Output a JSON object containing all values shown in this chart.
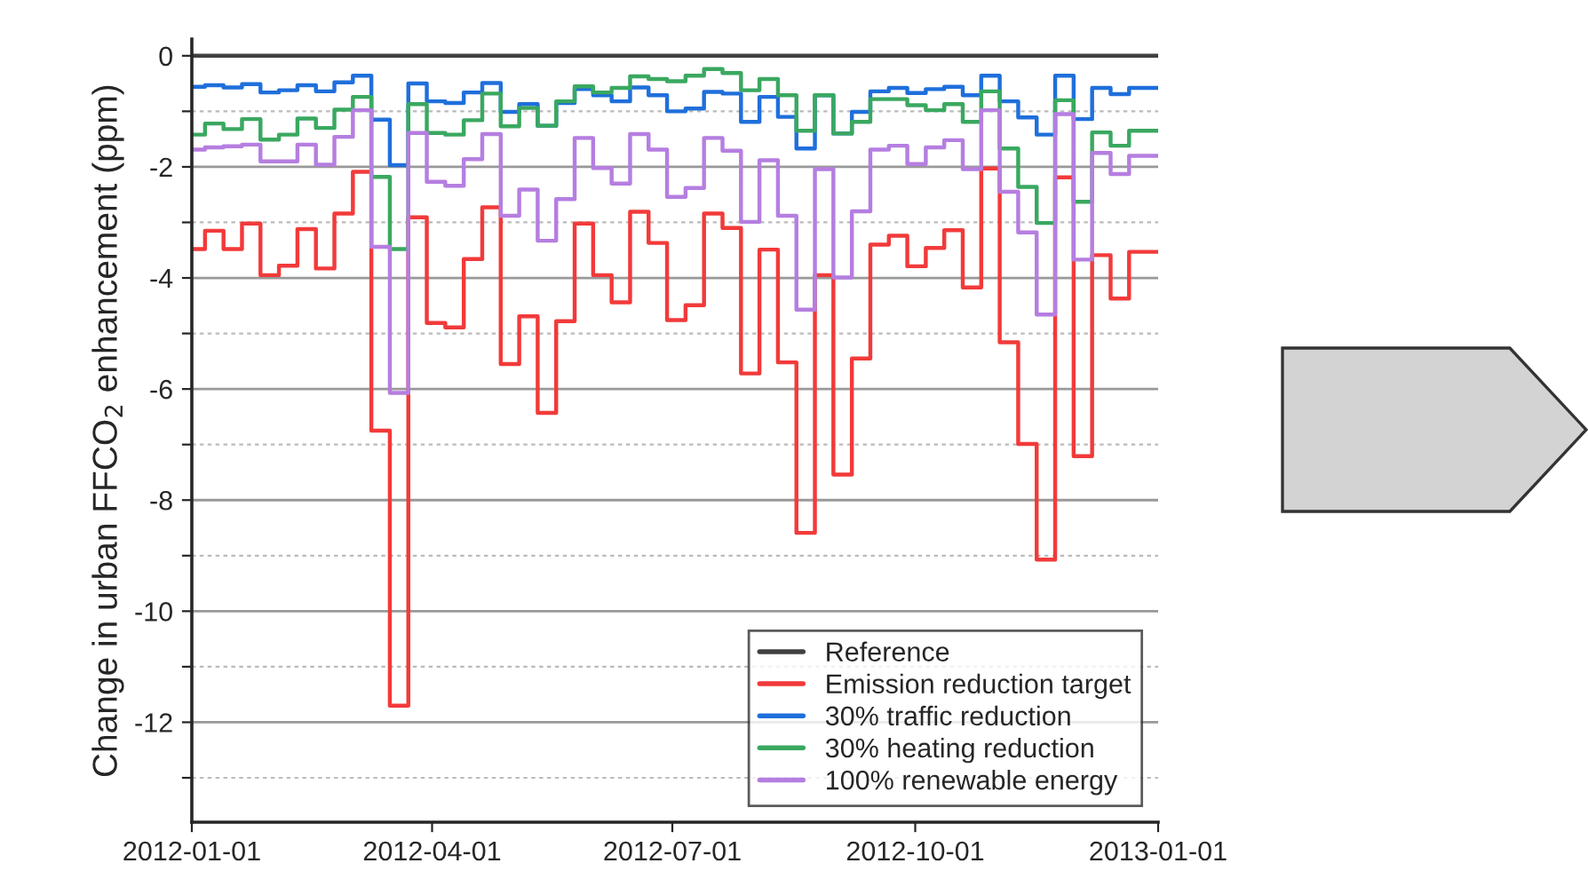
{
  "chart_data": {
    "type": "step",
    "ylabel": "Change in urban FFCO$_{2}$ enhancement (ppm)",
    "x": [
      "2012-01-01",
      "2012-01-06",
      "2012-01-13",
      "2012-01-20",
      "2012-01-27",
      "2012-02-03",
      "2012-02-10",
      "2012-02-17",
      "2012-02-24",
      "2012-03-02",
      "2012-03-09",
      "2012-03-16",
      "2012-03-23",
      "2012-03-30",
      "2012-04-06",
      "2012-04-13",
      "2012-04-20",
      "2012-04-27",
      "2012-05-04",
      "2012-05-11",
      "2012-05-18",
      "2012-05-25",
      "2012-06-01",
      "2012-06-08",
      "2012-06-15",
      "2012-06-22",
      "2012-06-29",
      "2012-07-06",
      "2012-07-13",
      "2012-07-20",
      "2012-07-27",
      "2012-08-03",
      "2012-08-10",
      "2012-08-17",
      "2012-08-24",
      "2012-08-31",
      "2012-09-07",
      "2012-09-14",
      "2012-09-21",
      "2012-09-28",
      "2012-10-05",
      "2012-10-12",
      "2012-10-19",
      "2012-10-26",
      "2012-11-02",
      "2012-11-09",
      "2012-11-16",
      "2012-11-23",
      "2012-11-30",
      "2012-12-07",
      "2012-12-14",
      "2012-12-21",
      "2013-01-01"
    ],
    "series": [
      {
        "name": "Reference",
        "color": "#404040",
        "x": [
          "2012-01-01",
          "2013-01-01"
        ],
        "values": [
          0,
          0
        ]
      },
      {
        "name": "Emission reduction target",
        "color": "#f23a3a",
        "values": [
          -3.48,
          -3.15,
          -3.48,
          -3.02,
          -3.95,
          -3.78,
          -3.12,
          -3.83,
          -2.84,
          -2.09,
          -6.75,
          -11.7,
          -2.91,
          -4.81,
          -4.89,
          -3.66,
          -2.73,
          -5.55,
          -4.69,
          -6.43,
          -4.78,
          -3.02,
          -3.95,
          -4.44,
          -2.81,
          -3.37,
          -4.76,
          -4.49,
          -2.84,
          -3.1,
          -5.72,
          -3.49,
          -5.52,
          -8.59,
          -3.95,
          -7.54,
          -5.45,
          -3.4,
          -3.24,
          -3.79,
          -3.46,
          -3.14,
          -4.17,
          -2.03,
          -5.16,
          -6.99,
          -9.07,
          -2.19,
          -7.21,
          -3.59,
          -4.37,
          -3.53,
          -3.53
        ]
      },
      {
        "name": "30% traffic reduction",
        "color": "#1f6fdb",
        "values": [
          -0.56,
          -0.53,
          -0.57,
          -0.51,
          -0.66,
          -0.62,
          -0.53,
          -0.64,
          -0.48,
          -0.36,
          -1.15,
          -1.97,
          -0.5,
          -0.82,
          -0.85,
          -0.66,
          -0.49,
          -1.01,
          -0.87,
          -1.26,
          -0.85,
          -0.6,
          -0.71,
          -0.82,
          -0.57,
          -0.71,
          -1.0,
          -0.95,
          -0.65,
          -0.68,
          -1.19,
          -0.74,
          -1.1,
          -1.67,
          -0.71,
          -1.4,
          -1.01,
          -0.64,
          -0.58,
          -0.67,
          -0.6,
          -0.56,
          -0.71,
          -0.36,
          -0.82,
          -1.11,
          -1.42,
          -0.36,
          -1.14,
          -0.58,
          -0.69,
          -0.58,
          -0.58
        ]
      },
      {
        "name": "30% heating reduction",
        "color": "#3aa860",
        "values": [
          -1.42,
          -1.22,
          -1.32,
          -1.14,
          -1.51,
          -1.42,
          -1.13,
          -1.3,
          -0.97,
          -0.74,
          -2.18,
          -3.48,
          -0.87,
          -1.39,
          -1.42,
          -1.16,
          -0.68,
          -1.27,
          -0.94,
          -1.26,
          -0.82,
          -0.55,
          -0.66,
          -0.58,
          -0.37,
          -0.42,
          -0.46,
          -0.36,
          -0.24,
          -0.31,
          -0.62,
          -0.42,
          -0.71,
          -1.35,
          -0.71,
          -1.4,
          -1.19,
          -0.78,
          -0.78,
          -0.89,
          -0.98,
          -0.87,
          -1.19,
          -0.64,
          -1.67,
          -2.36,
          -3.01,
          -0.8,
          -2.63,
          -1.38,
          -1.62,
          -1.35,
          -1.35
        ]
      },
      {
        "name": "100% renewable energy",
        "color": "#b57ee0",
        "values": [
          -1.69,
          -1.65,
          -1.63,
          -1.6,
          -1.9,
          -1.9,
          -1.6,
          -1.96,
          -1.46,
          -0.98,
          -3.44,
          -6.07,
          -1.39,
          -2.27,
          -2.34,
          -1.86,
          -1.41,
          -2.88,
          -2.41,
          -3.33,
          -2.58,
          -1.48,
          -2.02,
          -2.3,
          -1.41,
          -1.69,
          -2.54,
          -2.38,
          -1.48,
          -1.71,
          -2.99,
          -1.88,
          -2.88,
          -4.57,
          -2.04,
          -3.99,
          -2.8,
          -1.69,
          -1.62,
          -1.95,
          -1.65,
          -1.52,
          -2.04,
          -0.98,
          -2.45,
          -3.18,
          -4.66,
          -1.05,
          -3.67,
          -1.75,
          -2.13,
          -1.8,
          -1.8
        ]
      }
    ],
    "xlim": [
      "2012-01-01",
      "2013-01-01"
    ],
    "xticks": [
      "2012-01-01",
      "2012-04-01",
      "2012-07-01",
      "2012-10-01",
      "2013-01-01"
    ],
    "ylim": [
      -13.8,
      0.3
    ],
    "yticks": [
      {
        "value": -13,
        "label": null
      },
      -12,
      {
        "value": -11,
        "label": null
      },
      -10,
      {
        "value": -9,
        "label": null
      },
      -8,
      {
        "value": -7,
        "label": null
      },
      -6,
      {
        "value": -5,
        "label": null
      },
      -4,
      {
        "value": -3,
        "label": null
      },
      -2,
      {
        "value": -1,
        "label": null
      },
      0
    ],
    "grid": "y",
    "legend": "bottom right",
    "line_style": "solid"
  }
}
